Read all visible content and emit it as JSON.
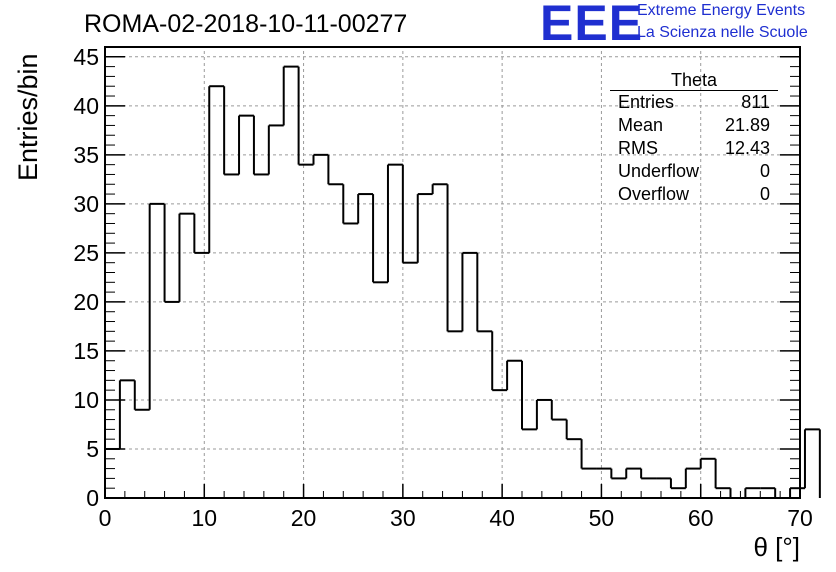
{
  "title": "ROMA-02-2018-10-11-00277",
  "logo": {
    "mark": "EEE",
    "line1": "Extreme Energy Events",
    "line2": "La Scienza nelle Scuole",
    "color": "#1f2fd0"
  },
  "stats_box": {
    "name": "Theta",
    "rows": [
      {
        "label": "Entries",
        "value": "811"
      },
      {
        "label": "Mean",
        "value": "21.89"
      },
      {
        "label": "RMS",
        "value": "12.43"
      },
      {
        "label": "Underflow",
        "value": "0"
      },
      {
        "label": "Overflow",
        "value": "0"
      }
    ]
  },
  "chart_data": {
    "type": "bar",
    "style": "step-histogram",
    "title": "ROMA-02-2018-10-11-00277",
    "xlabel": "θ [°]",
    "ylabel": "Entries/bin",
    "xlim": [
      0,
      70
    ],
    "ylim": [
      0,
      46
    ],
    "xticks": [
      0,
      10,
      20,
      30,
      40,
      50,
      60,
      70
    ],
    "yticks": [
      0,
      5,
      10,
      15,
      20,
      25,
      30,
      35,
      40,
      45
    ],
    "grid": true,
    "bin_width": 1.5,
    "bin_start": 0,
    "values": [
      5,
      12,
      9,
      30,
      20,
      29,
      25,
      42,
      33,
      39,
      33,
      38,
      44,
      34,
      35,
      32,
      28,
      31,
      22,
      34,
      24,
      31,
      32,
      17,
      25,
      17,
      11,
      14,
      7,
      10,
      8,
      6,
      3,
      3,
      2,
      3,
      2,
      2,
      1,
      3,
      4,
      1,
      0,
      1,
      1,
      0,
      1,
      7
    ],
    "line_color": "#000000"
  }
}
